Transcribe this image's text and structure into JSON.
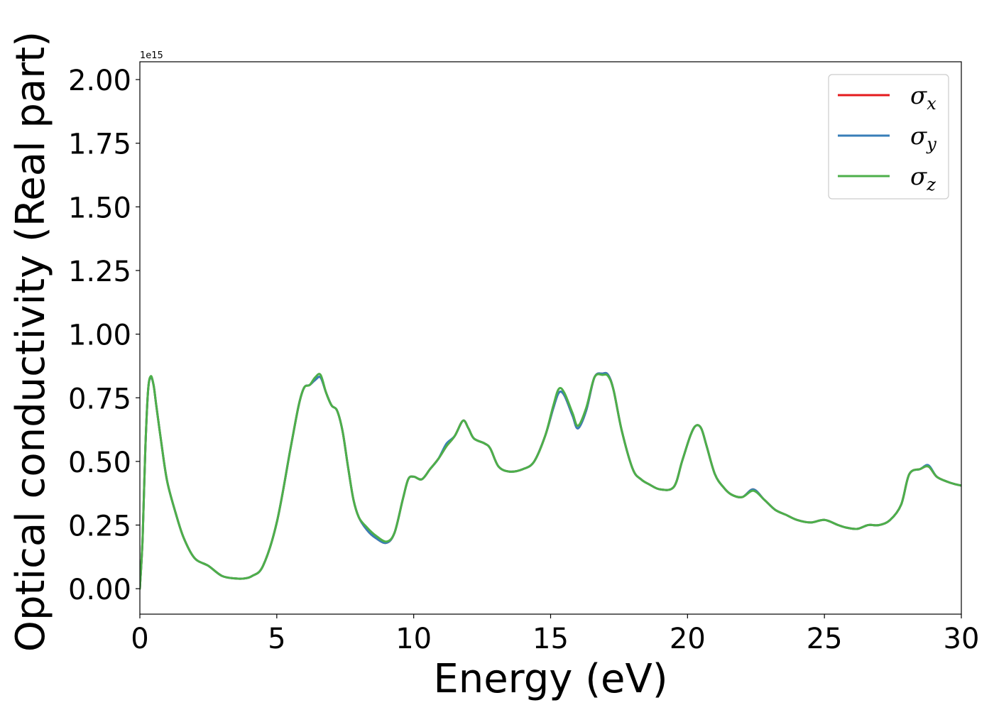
{
  "chart_data": {
    "type": "line",
    "title": "",
    "xlabel": "Energy (eV)",
    "ylabel": "Optical conductivity (Real part)",
    "y_offset_label": "1e15",
    "xlim": [
      0,
      30
    ],
    "ylim": [
      -0.1,
      2.07
    ],
    "x_ticks": [
      0,
      5,
      10,
      15,
      20,
      25,
      30
    ],
    "x_tick_labels": [
      "0",
      "5",
      "10",
      "15",
      "20",
      "25",
      "30"
    ],
    "y_ticks": [
      0.0,
      0.25,
      0.5,
      0.75,
      1.0,
      1.25,
      1.5,
      1.75,
      2.0
    ],
    "y_tick_labels": [
      "0.00",
      "0.25",
      "0.50",
      "0.75",
      "1.00",
      "1.25",
      "1.50",
      "1.75",
      "2.00"
    ],
    "grid": false,
    "legend_position": "top-right",
    "series": [
      {
        "name": "σx",
        "legend_base": "σ",
        "legend_sub": "x",
        "color": "#e41a1c",
        "x": [
          0,
          0.1,
          0.2,
          0.3,
          0.4,
          0.5,
          0.6,
          0.8,
          1.0,
          1.3,
          1.6,
          2.0,
          2.5,
          3.0,
          3.5,
          3.8,
          4.1,
          4.5,
          5.0,
          5.5,
          5.8,
          6.0,
          6.2,
          6.4,
          6.6,
          6.8,
          7.0,
          7.2,
          7.4,
          7.6,
          7.8,
          8.0,
          8.3,
          8.6,
          9.0,
          9.3,
          9.6,
          9.8,
          10.0,
          10.3,
          10.6,
          10.9,
          11.2,
          11.5,
          11.8,
          12.0,
          12.2,
          12.6,
          12.8,
          13.1,
          13.5,
          14.0,
          14.4,
          14.8,
          15.1,
          15.3,
          15.5,
          15.8,
          16.0,
          16.3,
          16.6,
          16.9,
          17.1,
          17.3,
          17.6,
          18.0,
          18.3,
          18.6,
          19.0,
          19.5,
          19.8,
          20.1,
          20.3,
          20.5,
          20.7,
          21.0,
          21.3,
          21.6,
          22.0,
          22.4,
          22.8,
          23.2,
          23.6,
          24.0,
          24.5,
          25.0,
          25.5,
          25.8,
          26.2,
          26.6,
          27.0,
          27.4,
          27.8,
          28.1,
          28.5,
          28.8,
          29.1,
          29.5,
          29.8,
          30.0
        ],
        "y": [
          0.0,
          0.2,
          0.55,
          0.78,
          0.83,
          0.8,
          0.72,
          0.56,
          0.42,
          0.3,
          0.2,
          0.12,
          0.09,
          0.05,
          0.04,
          0.04,
          0.05,
          0.09,
          0.26,
          0.55,
          0.72,
          0.79,
          0.8,
          0.82,
          0.83,
          0.77,
          0.72,
          0.7,
          0.62,
          0.48,
          0.35,
          0.28,
          0.23,
          0.2,
          0.18,
          0.22,
          0.35,
          0.43,
          0.44,
          0.43,
          0.47,
          0.51,
          0.56,
          0.6,
          0.66,
          0.63,
          0.59,
          0.57,
          0.55,
          0.48,
          0.46,
          0.47,
          0.5,
          0.6,
          0.71,
          0.77,
          0.76,
          0.68,
          0.63,
          0.7,
          0.83,
          0.845,
          0.84,
          0.78,
          0.62,
          0.47,
          0.43,
          0.41,
          0.39,
          0.4,
          0.5,
          0.6,
          0.64,
          0.63,
          0.56,
          0.45,
          0.4,
          0.37,
          0.36,
          0.39,
          0.35,
          0.31,
          0.29,
          0.27,
          0.26,
          0.27,
          0.25,
          0.24,
          0.235,
          0.25,
          0.25,
          0.27,
          0.33,
          0.45,
          0.47,
          0.48,
          0.44,
          0.42,
          0.41,
          0.405
        ]
      },
      {
        "name": "σy",
        "legend_base": "σ",
        "legend_sub": "y",
        "color": "#377eb8",
        "x": [
          0,
          0.1,
          0.2,
          0.3,
          0.4,
          0.5,
          0.6,
          0.8,
          1.0,
          1.3,
          1.6,
          2.0,
          2.5,
          3.0,
          3.5,
          3.8,
          4.1,
          4.5,
          5.0,
          5.5,
          5.8,
          6.0,
          6.2,
          6.4,
          6.6,
          6.8,
          7.0,
          7.2,
          7.4,
          7.6,
          7.8,
          8.0,
          8.3,
          8.6,
          9.0,
          9.3,
          9.6,
          9.8,
          10.0,
          10.3,
          10.6,
          10.9,
          11.2,
          11.5,
          11.8,
          12.0,
          12.2,
          12.6,
          12.8,
          13.1,
          13.5,
          14.0,
          14.4,
          14.8,
          15.1,
          15.3,
          15.5,
          15.8,
          16.0,
          16.3,
          16.6,
          16.9,
          17.1,
          17.3,
          17.6,
          18.0,
          18.3,
          18.6,
          19.0,
          19.5,
          19.8,
          20.1,
          20.3,
          20.5,
          20.7,
          21.0,
          21.3,
          21.6,
          22.0,
          22.4,
          22.8,
          23.2,
          23.6,
          24.0,
          24.5,
          25.0,
          25.5,
          25.8,
          26.2,
          26.6,
          27.0,
          27.4,
          27.8,
          28.1,
          28.5,
          28.8,
          29.1,
          29.5,
          29.8,
          30.0
        ],
        "y": [
          0.0,
          0.2,
          0.55,
          0.78,
          0.83,
          0.8,
          0.72,
          0.56,
          0.42,
          0.3,
          0.2,
          0.12,
          0.09,
          0.05,
          0.04,
          0.04,
          0.05,
          0.09,
          0.26,
          0.55,
          0.72,
          0.79,
          0.8,
          0.82,
          0.83,
          0.77,
          0.72,
          0.7,
          0.62,
          0.48,
          0.35,
          0.28,
          0.23,
          0.2,
          0.18,
          0.22,
          0.35,
          0.43,
          0.44,
          0.43,
          0.47,
          0.51,
          0.57,
          0.6,
          0.66,
          0.63,
          0.59,
          0.57,
          0.55,
          0.48,
          0.46,
          0.47,
          0.5,
          0.6,
          0.71,
          0.77,
          0.76,
          0.68,
          0.63,
          0.7,
          0.83,
          0.845,
          0.84,
          0.78,
          0.62,
          0.47,
          0.43,
          0.41,
          0.39,
          0.4,
          0.5,
          0.6,
          0.64,
          0.63,
          0.56,
          0.45,
          0.4,
          0.37,
          0.36,
          0.39,
          0.35,
          0.31,
          0.29,
          0.27,
          0.26,
          0.27,
          0.25,
          0.24,
          0.235,
          0.25,
          0.25,
          0.27,
          0.33,
          0.45,
          0.47,
          0.485,
          0.44,
          0.42,
          0.41,
          0.405
        ]
      },
      {
        "name": "σz",
        "legend_base": "σ",
        "legend_sub": "z",
        "color": "#4daf4a",
        "x": [
          0,
          0.1,
          0.2,
          0.3,
          0.4,
          0.5,
          0.6,
          0.8,
          1.0,
          1.3,
          1.6,
          2.0,
          2.5,
          3.0,
          3.5,
          3.8,
          4.1,
          4.5,
          5.0,
          5.5,
          5.8,
          6.0,
          6.2,
          6.4,
          6.6,
          6.8,
          7.0,
          7.2,
          7.4,
          7.6,
          7.8,
          8.0,
          8.3,
          8.6,
          9.0,
          9.3,
          9.6,
          9.8,
          10.0,
          10.3,
          10.6,
          10.9,
          11.2,
          11.5,
          11.8,
          12.0,
          12.2,
          12.6,
          12.8,
          13.1,
          13.5,
          14.0,
          14.4,
          14.8,
          15.1,
          15.3,
          15.5,
          15.8,
          16.0,
          16.3,
          16.6,
          16.9,
          17.1,
          17.3,
          17.6,
          18.0,
          18.3,
          18.6,
          19.0,
          19.5,
          19.8,
          20.1,
          20.3,
          20.5,
          20.7,
          21.0,
          21.3,
          21.6,
          22.0,
          22.4,
          22.8,
          23.2,
          23.6,
          24.0,
          24.5,
          25.0,
          25.5,
          25.8,
          26.2,
          26.6,
          27.0,
          27.4,
          27.8,
          28.1,
          28.5,
          28.8,
          29.1,
          29.5,
          29.8,
          30.0
        ],
        "y": [
          0.0,
          0.2,
          0.55,
          0.78,
          0.835,
          0.8,
          0.72,
          0.56,
          0.42,
          0.3,
          0.2,
          0.12,
          0.09,
          0.05,
          0.04,
          0.04,
          0.05,
          0.09,
          0.26,
          0.55,
          0.72,
          0.79,
          0.8,
          0.83,
          0.84,
          0.77,
          0.72,
          0.7,
          0.62,
          0.48,
          0.35,
          0.28,
          0.24,
          0.21,
          0.185,
          0.22,
          0.35,
          0.43,
          0.44,
          0.43,
          0.47,
          0.51,
          0.56,
          0.6,
          0.66,
          0.63,
          0.59,
          0.57,
          0.55,
          0.48,
          0.46,
          0.47,
          0.5,
          0.6,
          0.72,
          0.785,
          0.77,
          0.69,
          0.64,
          0.71,
          0.83,
          0.84,
          0.835,
          0.78,
          0.62,
          0.47,
          0.43,
          0.41,
          0.39,
          0.4,
          0.5,
          0.6,
          0.64,
          0.63,
          0.56,
          0.45,
          0.4,
          0.37,
          0.36,
          0.385,
          0.35,
          0.31,
          0.29,
          0.27,
          0.26,
          0.27,
          0.25,
          0.24,
          0.235,
          0.25,
          0.25,
          0.27,
          0.33,
          0.45,
          0.47,
          0.48,
          0.44,
          0.42,
          0.41,
          0.405
        ]
      }
    ]
  }
}
